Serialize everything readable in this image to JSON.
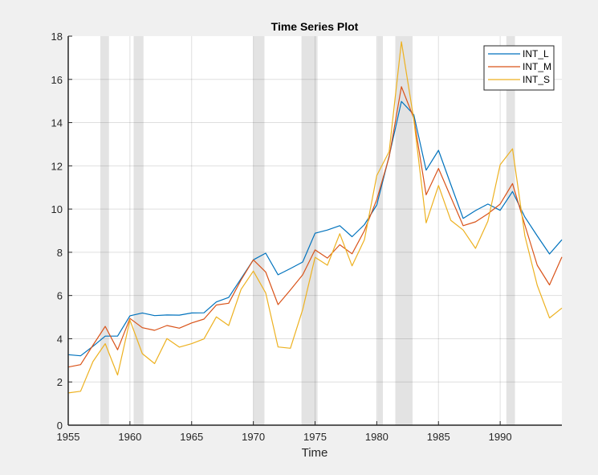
{
  "chart_data": {
    "type": "line",
    "title": "Time Series Plot",
    "xlabel": "Time",
    "ylabel": "",
    "xlim": [
      1955,
      1995
    ],
    "ylim": [
      0,
      18
    ],
    "xticks": [
      1955,
      1960,
      1965,
      1970,
      1975,
      1980,
      1985,
      1990
    ],
    "yticks": [
      0,
      2,
      4,
      6,
      8,
      10,
      12,
      14,
      16,
      18
    ],
    "grid": true,
    "legend_position": "top-right",
    "x": [
      1955,
      1956,
      1957,
      1958,
      1959,
      1960,
      1961,
      1962,
      1963,
      1964,
      1965,
      1966,
      1967,
      1968,
      1969,
      1970,
      1971,
      1972,
      1973,
      1974,
      1975,
      1976,
      1977,
      1978,
      1979,
      1980,
      1981,
      1982,
      1983,
      1984,
      1985,
      1986,
      1987,
      1988,
      1989,
      1990,
      1991,
      1992,
      1993,
      1994,
      1995
    ],
    "series": [
      {
        "name": "INT_L",
        "color": "#0072bd",
        "values": [
          3.26,
          3.21,
          3.65,
          4.12,
          4.12,
          5.06,
          5.19,
          5.07,
          5.1,
          5.09,
          5.19,
          5.2,
          5.7,
          5.91,
          6.78,
          7.65,
          7.96,
          6.96,
          7.25,
          7.55,
          8.88,
          9.03,
          9.23,
          8.72,
          9.28,
          10.19,
          12.45,
          14.98,
          14.37,
          11.8,
          12.72,
          11.14,
          9.57,
          9.93,
          10.23,
          9.94,
          10.81,
          9.63,
          8.76,
          7.92,
          8.58
        ]
      },
      {
        "name": "INT_M",
        "color": "#d95319",
        "values": [
          2.69,
          2.8,
          3.7,
          4.57,
          3.49,
          4.94,
          4.51,
          4.39,
          4.61,
          4.49,
          4.73,
          4.91,
          5.56,
          5.64,
          6.72,
          7.65,
          7.09,
          5.58,
          6.26,
          6.96,
          8.11,
          7.73,
          8.35,
          7.93,
          9.0,
          10.44,
          12.41,
          15.66,
          14.21,
          10.66,
          11.88,
          10.56,
          9.23,
          9.41,
          9.78,
          10.23,
          11.18,
          9.26,
          7.4,
          6.49,
          7.78
        ]
      },
      {
        "name": "INT_S",
        "color": "#edb120",
        "values": [
          1.49,
          1.57,
          2.94,
          3.77,
          2.32,
          4.86,
          3.31,
          2.85,
          4.01,
          3.61,
          3.77,
          3.99,
          5.01,
          4.61,
          6.28,
          7.13,
          6.12,
          3.62,
          3.56,
          5.35,
          7.77,
          7.4,
          8.86,
          7.37,
          8.58,
          11.55,
          12.66,
          17.74,
          14.15,
          9.36,
          11.09,
          9.48,
          9.03,
          8.18,
          9.44,
          12.05,
          12.79,
          8.76,
          6.47,
          4.96,
          5.42
        ]
      }
    ],
    "shaded_regions": [
      {
        "start": 1957.6,
        "end": 1958.3
      },
      {
        "start": 1960.3,
        "end": 1961.1
      },
      {
        "start": 1970.0,
        "end": 1970.9
      },
      {
        "start": 1973.9,
        "end": 1975.2
      },
      {
        "start": 1980.05,
        "end": 1980.5
      },
      {
        "start": 1981.5,
        "end": 1982.9
      },
      {
        "start": 1990.5,
        "end": 1991.2
      }
    ],
    "shade_color": "#e3e3e3"
  }
}
